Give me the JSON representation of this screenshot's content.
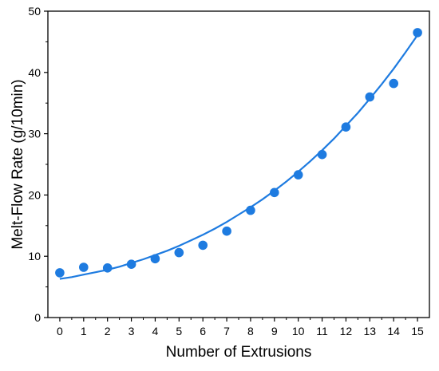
{
  "chart_data": {
    "type": "scatter",
    "title": "",
    "xlabel": "Number of Extrusions",
    "ylabel": "Melt-Flow Rate (g/10min)",
    "xlim": [
      -0.5,
      15.5
    ],
    "ylim": [
      0,
      50
    ],
    "xticks": [
      "0",
      "1",
      "2",
      "3",
      "4",
      "5",
      "6",
      "7",
      "8",
      "9",
      "10",
      "11",
      "12",
      "13",
      "14",
      "15"
    ],
    "yticks": [
      "0",
      "10",
      "20",
      "30",
      "40",
      "50"
    ],
    "grid": false,
    "legend": "none",
    "series": [
      {
        "kind": "points",
        "color": "#1E7BE0",
        "x": [
          0,
          1,
          2,
          3,
          4,
          5,
          6,
          7,
          8,
          9,
          10,
          11,
          12,
          13,
          14,
          15
        ],
        "y": [
          7.3,
          8.2,
          8.1,
          8.7,
          9.6,
          10.6,
          11.8,
          14.1,
          17.5,
          20.4,
          23.3,
          26.6,
          31.1,
          36.0,
          38.2,
          46.5
        ]
      },
      {
        "kind": "fit-line",
        "color": "#1E7BE0",
        "x": [
          0,
          0.5,
          1,
          1.5,
          2,
          2.5,
          3,
          3.5,
          4,
          4.5,
          5,
          5.5,
          6,
          6.5,
          7,
          7.5,
          8,
          8.5,
          9,
          9.5,
          10,
          10.5,
          11,
          11.5,
          12,
          12.5,
          13,
          13.5,
          14,
          14.5,
          15
        ],
        "y": [
          6.3,
          6.6,
          7.0,
          7.4,
          7.8,
          8.3,
          8.9,
          9.5,
          10.2,
          10.9,
          11.7,
          12.6,
          13.5,
          14.5,
          15.6,
          16.8,
          18.0,
          19.3,
          20.7,
          22.2,
          23.8,
          25.5,
          27.3,
          29.2,
          31.3,
          33.4,
          35.7,
          38.1,
          40.6,
          43.3,
          46.1
        ]
      }
    ]
  }
}
